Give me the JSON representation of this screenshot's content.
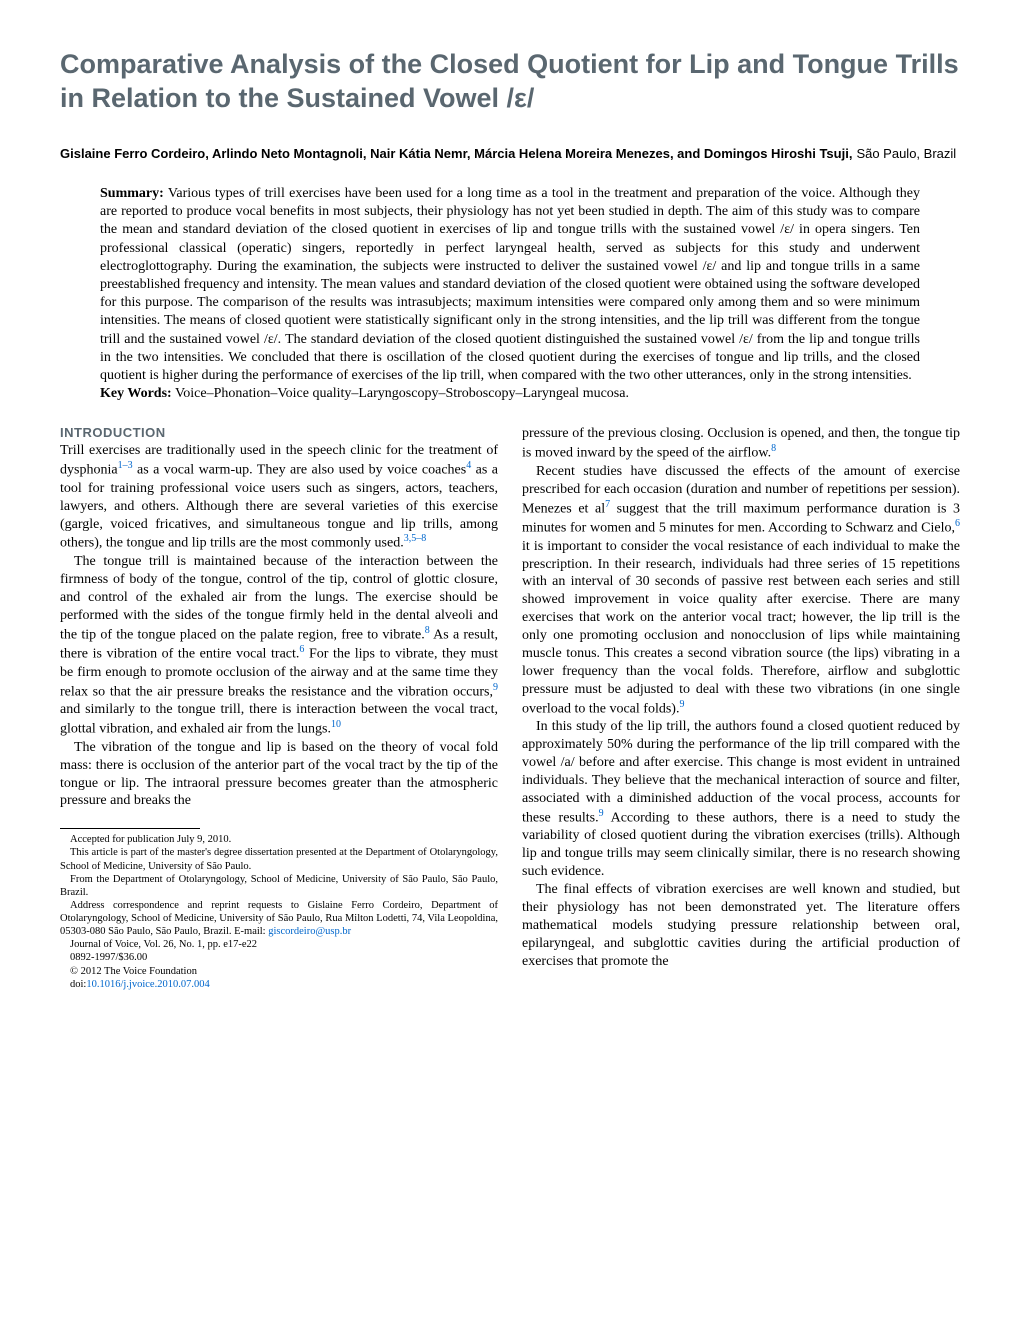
{
  "title": "Comparative Analysis of the Closed Quotient for Lip and Tongue Trills in Relation to the Sustained Vowel /ε/",
  "authors": "Gislaine Ferro Cordeiro, Arlindo Neto Montagnoli, Nair Kátia Nemr, Márcia Helena Moreira Menezes, and Domingos Hiroshi Tsuji,",
  "affiliation": "São Paulo, Brazil",
  "abstract": {
    "label": "Summary:",
    "text": "Various types of trill exercises have been used for a long time as a tool in the treatment and preparation of the voice. Although they are reported to produce vocal benefits in most subjects, their physiology has not yet been studied in depth. The aim of this study was to compare the mean and standard deviation of the closed quotient in exercises of lip and tongue trills with the sustained vowel /ε/ in opera singers. Ten professional classical (operatic) singers, reportedly in perfect laryngeal health, served as subjects for this study and underwent electroglottography. During the examination, the subjects were instructed to deliver the sustained vowel /ε/ and lip and tongue trills in a same preestablished frequency and intensity. The mean values and standard deviation of the closed quotient were obtained using the software developed for this purpose. The comparison of the results was intrasubjects; maximum intensities were compared only among them and so were minimum intensities. The means of closed quotient were statistically significant only in the strong intensities, and the lip trill was different from the tongue trill and the sustained vowel /ε/. The standard deviation of the closed quotient distinguished the sustained vowel /ε/ from the lip and tongue trills in the two intensities. We concluded that there is oscillation of the closed quotient during the exercises of tongue and lip trills, and the closed quotient is higher during the performance of exercises of the lip trill, when compared with the two other utterances, only in the strong intensities.",
    "keywords_label": "Key Words:",
    "keywords": "Voice–Phonation–Voice quality–Laryngoscopy–Stroboscopy–Laryngeal mucosa."
  },
  "section_heading": "INTRODUCTION",
  "left_column": {
    "p1a": "Trill exercises are traditionally used in the speech clinic for the treatment of dysphonia",
    "ref1": "1–3",
    "p1b": " as a vocal warm-up. They are also used by voice coaches",
    "ref2": "4",
    "p1c": " as a tool for training professional voice users such as singers, actors, teachers, lawyers, and others. Although there are several varieties of this exercise (gargle, voiced fricatives, and simultaneous tongue and lip trills, among others), the tongue and lip trills are the most commonly used.",
    "ref3": "3,5–8",
    "p2a": "The tongue trill is maintained because of the interaction between the firmness of body of the tongue, control of the tip, control of glottic closure, and control of the exhaled air from the lungs. The exercise should be performed with the sides of the tongue firmly held in the dental alveoli and the tip of the tongue placed on the palate region, free to vibrate.",
    "ref4": "8",
    "p2b": " As a result, there is vibration of the entire vocal tract.",
    "ref5": "6",
    "p2c": " For the lips to vibrate, they must be firm enough to promote occlusion of the airway and at the same time they relax so that the air pressure breaks the resistance and the vibration occurs,",
    "ref6": "9",
    "p2d": " and similarly to the tongue trill, there is interaction between the vocal tract, glottal vibration, and exhaled air from the lungs.",
    "ref7": "10",
    "p3": "The vibration of the tongue and lip is based on the theory of vocal fold mass: there is occlusion of the anterior part of the vocal tract by the tip of the tongue or lip. The intraoral pressure becomes greater than the atmospheric pressure and breaks the"
  },
  "right_column": {
    "p1a": "pressure of the previous closing. Occlusion is opened, and then, the tongue tip is moved inward by the speed of the airflow.",
    "ref1": "8",
    "p2a": "Recent studies have discussed the effects of the amount of exercise prescribed for each occasion (duration and number of repetitions per session). Menezes et al",
    "ref2": "7",
    "p2b": " suggest that the trill maximum performance duration is 3 minutes for women and 5 minutes for men. According to Schwarz and Cielo,",
    "ref3": "6",
    "p2c": " it is important to consider the vocal resistance of each individual to make the prescription. In their research, individuals had three series of 15 repetitions with an interval of 30 seconds of passive rest between each series and still showed improvement in voice quality after exercise. There are many exercises that work on the anterior vocal tract; however, the lip trill is the only one promoting occlusion and nonocclusion of lips while maintaining muscle tonus. This creates a second vibration source (the lips) vibrating in a lower frequency than the vocal folds. Therefore, airflow and subglottic pressure must be adjusted to deal with these two vibrations (in one single overload to the vocal folds).",
    "ref4": "9",
    "p3a": "In this study of the lip trill, the authors found a closed quotient reduced by approximately 50% during the performance of the lip trill compared with the vowel /a/ before and after exercise. This change is most evident in untrained individuals. They believe that the mechanical interaction of source and filter, associated with a diminished adduction of the vocal process, accounts for these results.",
    "ref5": "9",
    "p3b": " According to these authors, there is a need to study the variability of closed quotient during the vibration exercises (trills). Although lip and tongue trills may seem clinically similar, there is no research showing such evidence.",
    "p4": "The final effects of vibration exercises are well known and studied, but their physiology has not been demonstrated yet. The literature offers mathematical models studying pressure relationship between oral, epilaryngeal, and subglottic cavities during the artificial production of exercises that promote the"
  },
  "footnotes": {
    "f1": "Accepted for publication July 9, 2010.",
    "f2": "This article is part of the master's degree dissertation presented at the Department of Otolaryngology, School of Medicine, University of São Paulo.",
    "f3": "From the Department of Otolaryngology, School of Medicine, University of São Paulo, São Paulo, Brazil.",
    "f4a": "Address correspondence and reprint requests to Gislaine Ferro Cordeiro, Department of Otolaryngology, School of Medicine, University of São Paulo, Rua Milton Lodetti, 74, Vila Leopoldina, 05303-080 São Paulo, São Paulo, Brazil. E-mail: ",
    "email": "giscordeiro@usp.br",
    "f5": "Journal of Voice, Vol. 26, No. 1, pp. e17-e22",
    "f6": "0892-1997/$36.00",
    "f7": "© 2012 The Voice Foundation",
    "f8a": "doi:",
    "doi": "10.1016/j.jvoice.2010.07.004"
  },
  "colors": {
    "heading": "#5a6770",
    "link": "#0066cc",
    "text": "#000000",
    "background": "#ffffff"
  }
}
